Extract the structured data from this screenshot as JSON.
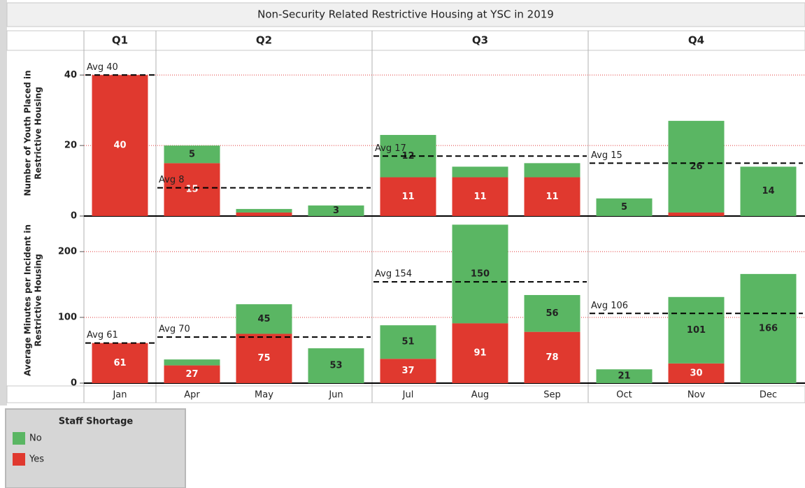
{
  "title": "Non-Security Related Restrictive Housing at YSC in 2019",
  "quarters": [
    {
      "label": "Q1",
      "months": [
        "Jan"
      ]
    },
    {
      "label": "Q2",
      "months": [
        "Apr",
        "May",
        "Jun"
      ]
    },
    {
      "label": "Q3",
      "months": [
        "Jul",
        "Aug",
        "Sep"
      ]
    },
    {
      "label": "Q4",
      "months": [
        "Oct",
        "Nov",
        "Dec"
      ]
    }
  ],
  "legend_title": "Staff Shortage",
  "chart_data": [
    {
      "type": "bar",
      "stacked": true,
      "y_label": [
        "Number of Youth Placed in",
        "Restrictive Housing"
      ],
      "categories": [
        "Jan",
        "Apr",
        "May",
        "Jun",
        "Jul",
        "Aug",
        "Sep",
        "Oct",
        "Nov",
        "Dec"
      ],
      "series": [
        {
          "name": "No",
          "color": "#5ab663",
          "values": [
            null,
            5,
            1,
            3,
            12,
            3,
            4,
            5,
            26,
            14
          ],
          "value_labels": [
            null,
            "5",
            null,
            "3",
            "12",
            null,
            null,
            "5",
            "26",
            "14"
          ]
        },
        {
          "name": "Yes",
          "color": "#e0392f",
          "values": [
            40,
            15,
            1,
            null,
            11,
            11,
            11,
            null,
            1,
            null
          ],
          "value_labels": [
            "40",
            "15",
            null,
            null,
            "11",
            "11",
            "11",
            null,
            null,
            null
          ]
        }
      ],
      "averages": [
        {
          "value": 40,
          "label": "Avg 40"
        },
        {
          "value": 8,
          "label": "Avg 8"
        },
        {
          "value": 17,
          "label": "Avg 17"
        },
        {
          "value": 15,
          "label": "Avg 15"
        }
      ],
      "ylim": [
        0,
        47
      ],
      "yticks": [
        0,
        20,
        40
      ],
      "grid": true
    },
    {
      "type": "bar",
      "stacked": true,
      "y_label": [
        "Average Minutes per Incident in",
        "Restrictive Housing"
      ],
      "categories": [
        "Jan",
        "Apr",
        "May",
        "Jun",
        "Jul",
        "Aug",
        "Sep",
        "Oct",
        "Nov",
        "Dec"
      ],
      "series": [
        {
          "name": "No",
          "color": "#5ab663",
          "values": [
            null,
            9,
            45,
            53,
            51,
            150,
            56,
            21,
            101,
            166
          ],
          "value_labels": [
            null,
            null,
            "45",
            "53",
            "51",
            "150",
            "56",
            "21",
            "101",
            "166"
          ]
        },
        {
          "name": "Yes",
          "color": "#e0392f",
          "values": [
            61,
            27,
            75,
            null,
            37,
            91,
            78,
            null,
            30,
            null
          ],
          "value_labels": [
            "61",
            "27",
            "75",
            null,
            "37",
            "91",
            "78",
            null,
            "30",
            null
          ]
        }
      ],
      "averages": [
        {
          "value": 61,
          "label": "Avg 61"
        },
        {
          "value": 70,
          "label": "Avg 70"
        },
        {
          "value": 154,
          "label": "Avg 154"
        },
        {
          "value": 106,
          "label": "Avg 106"
        }
      ],
      "ylim": [
        0,
        252
      ],
      "yticks": [
        0,
        100,
        200
      ],
      "grid": true
    }
  ]
}
